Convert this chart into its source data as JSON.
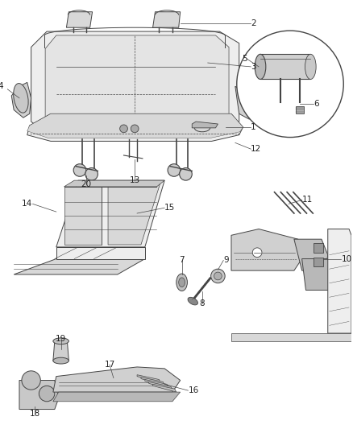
{
  "bg_color": "#ffffff",
  "line_color": "#444444",
  "gray_fill": "#d8d8d8",
  "light_fill": "#eeeeee",
  "label_color": "#222222",
  "label_fontsize": 7.5,
  "figsize": [
    4.38,
    5.33
  ],
  "dpi": 100
}
